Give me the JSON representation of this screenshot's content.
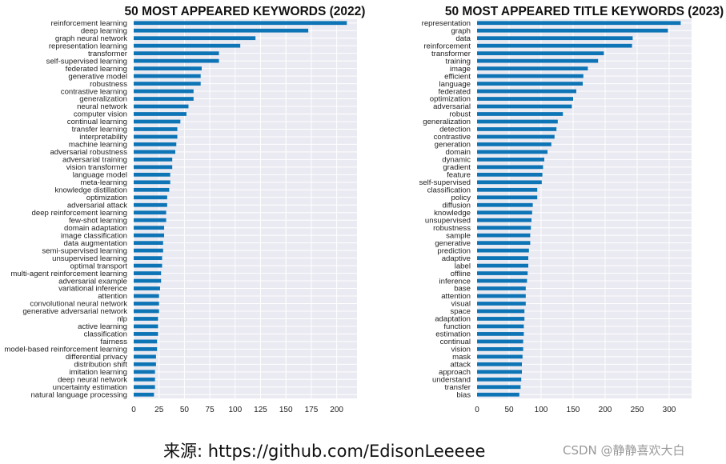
{
  "caption": "来源: https://github.com/EdisonLeeeee",
  "watermark": "CSDN @静静喜欢大白",
  "colors": {
    "bar": "#0d74b5",
    "plot_bg": "#eaeaf2",
    "grid": "#ffffff",
    "text": "#222222"
  },
  "chart_data": [
    {
      "type": "bar",
      "orientation": "horizontal",
      "title": "50 MOST APPEARED KEYWORDS (2022)",
      "xlim": [
        0,
        220
      ],
      "xticks": [
        0,
        25,
        50,
        75,
        100,
        125,
        150,
        175,
        200
      ],
      "categories": [
        "reinforcement learning",
        "deep learning",
        "graph neural network",
        "representation learning",
        "transformer",
        "self-supervised learning",
        "federated learning",
        "generative model",
        "robustness",
        "contrastive learning",
        "generalization",
        "neural network",
        "computer vision",
        "continual learning",
        "transfer learning",
        "interpretability",
        "machine learning",
        "adversarial robustness",
        "adversarial training",
        "vision transformer",
        "language model",
        "meta-learning",
        "knowledge distillation",
        "optimization",
        "adversarial attack",
        "deep reinforcement learning",
        "few-shot learning",
        "domain adaptation",
        "image classification",
        "data augmentation",
        "semi-supervised learning",
        "unsupervised learning",
        "optimal transport",
        "multi-agent reinforcement learning",
        "adversarial example",
        "variational inference",
        "attention",
        "convolutional neural network",
        "generative adversarial network",
        "nlp",
        "active learning",
        "classification",
        "fairness",
        "model-based reinforcement learning",
        "differential privacy",
        "distribution shift",
        "imitation learning",
        "deep neural network",
        "uncertainty estimation",
        "natural language processing"
      ],
      "values": [
        210,
        172,
        120,
        105,
        84,
        84,
        67,
        66,
        66,
        59,
        59,
        54,
        52,
        46,
        43,
        43,
        42,
        41,
        38,
        38,
        36,
        36,
        35,
        33,
        33,
        32,
        32,
        30,
        30,
        29,
        29,
        28,
        28,
        27,
        27,
        26,
        25,
        25,
        25,
        24,
        24,
        24,
        23,
        23,
        22,
        22,
        21,
        21,
        21,
        20
      ],
      "grid": true
    },
    {
      "type": "bar",
      "orientation": "horizontal",
      "title": "50 MOST APPEARED TITLE KEYWORDS (2023)",
      "xlim": [
        0,
        335
      ],
      "xticks": [
        0,
        50,
        100,
        150,
        200,
        250,
        300
      ],
      "categories": [
        "representation",
        "graph",
        "data",
        "reinforcement",
        "transformer",
        "training",
        "image",
        "efficient",
        "language",
        "federated",
        "optimization",
        "adversarial",
        "robust",
        "generalization",
        "detection",
        "contrastive",
        "generation",
        "domain",
        "dynamic",
        "gradient",
        "feature",
        "self-supervised",
        "classification",
        "policy",
        "diffusion",
        "knowledge",
        "unsupervised",
        "robustness",
        "sample",
        "generative",
        "prediction",
        "adaptive",
        "label",
        "offline",
        "inference",
        "base",
        "attention",
        "visual",
        "space",
        "adaptation",
        "function",
        "estimation",
        "continual",
        "vision",
        "mask",
        "attack",
        "approach",
        "understand",
        "transfer",
        "bias"
      ],
      "values": [
        318,
        298,
        243,
        242,
        198,
        189,
        173,
        166,
        165,
        155,
        150,
        148,
        134,
        126,
        124,
        121,
        116,
        110,
        105,
        103,
        102,
        101,
        94,
        94,
        87,
        86,
        85,
        84,
        83,
        83,
        81,
        80,
        80,
        79,
        78,
        76,
        76,
        76,
        74,
        74,
        73,
        73,
        72,
        72,
        71,
        70,
        70,
        69,
        68,
        66
      ],
      "grid": true
    }
  ]
}
